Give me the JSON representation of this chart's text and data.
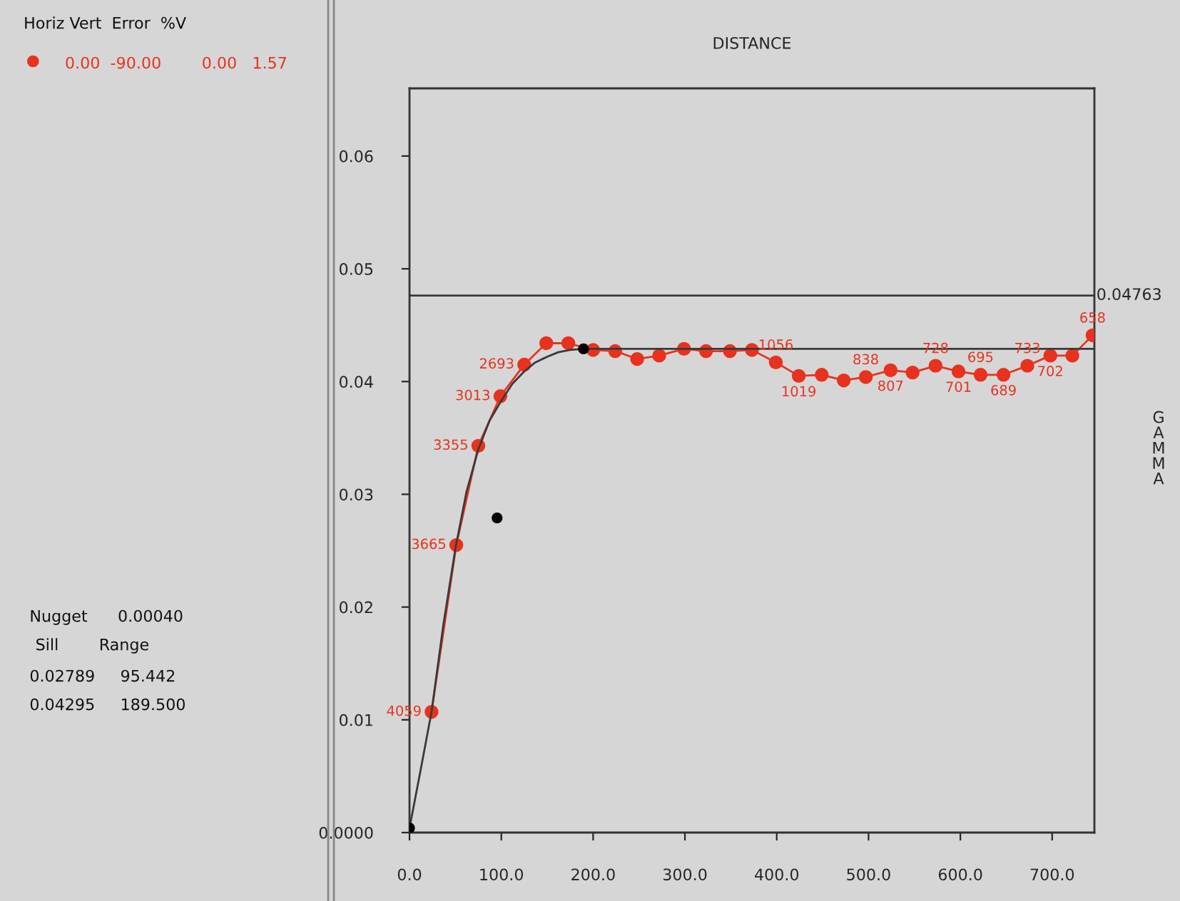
{
  "chart_data": {
    "type": "line",
    "xlabel": "DISTANCE",
    "ylabel": "GAMMA",
    "xlim": [
      0,
      746
    ],
    "ylim": [
      0,
      0.066
    ],
    "xticks": [
      {
        "value": 0,
        "label": "0.0"
      },
      {
        "value": 100,
        "label": "100.0"
      },
      {
        "value": 200,
        "label": "200.0"
      },
      {
        "value": 300,
        "label": "300.0"
      },
      {
        "value": 400,
        "label": "400.0"
      },
      {
        "value": 500,
        "label": "500.0"
      },
      {
        "value": 600,
        "label": "600.0"
      },
      {
        "value": 700,
        "label": "700.0"
      }
    ],
    "yticks": [
      {
        "value": 0,
        "label": "0.0000"
      },
      0.01,
      0.02,
      0.03,
      0.04,
      0.05,
      0.06
    ],
    "series": [
      {
        "color": "#e8321e",
        "marker": "circle",
        "x": [
          24,
          51,
          75,
          99,
          125,
          149,
          173,
          200,
          224,
          248,
          272,
          299,
          323,
          349,
          373,
          399,
          424,
          449,
          473,
          497,
          524,
          548,
          573,
          598,
          622,
          647,
          673,
          698,
          722,
          744
        ],
        "values": [
          0.0107,
          0.0255,
          0.0343,
          0.0387,
          0.0415,
          0.0434,
          0.0434,
          0.0428,
          0.0427,
          0.042,
          0.0423,
          0.0429,
          0.0427,
          0.0427,
          0.0428,
          0.0417,
          0.0405,
          0.0406,
          0.0401,
          0.0404,
          0.041,
          0.0408,
          0.0414,
          0.0409,
          0.0406,
          0.0406,
          0.0414,
          0.0423,
          0.0423,
          0.0441
        ]
      },
      {
        "type": "line",
        "color": "#3a3a3a",
        "marker": "none",
        "x": [
          0,
          12,
          24,
          37,
          50,
          62,
          75,
          87,
          100,
          112,
          125,
          137,
          150,
          162,
          175,
          189.5,
          745
        ],
        "values": [
          0.0004,
          0.0055,
          0.0107,
          0.0185,
          0.0252,
          0.0302,
          0.034,
          0.0365,
          0.0383,
          0.0398,
          0.0409,
          0.0417,
          0.0422,
          0.0426,
          0.0428,
          0.0429,
          0.0429
        ]
      },
      {
        "type": "scatter",
        "color": "#000000",
        "marker": "circle",
        "x": [
          0,
          95.4,
          189.5
        ],
        "values": [
          0.0004,
          0.0279,
          0.0429
        ]
      }
    ],
    "ref_lines": [
      {
        "axis": "y",
        "value": 0.04763,
        "label": "0.04763",
        "color": "#3a3a3a"
      }
    ],
    "annotations": [
      "Horiz Vert  Error  %V",
      "0.00  -90.00        0.00   1.57",
      "Nugget      0.00040",
      "Sill        Range",
      "0.02789     95.442",
      "0.04295     189.500",
      {
        "text": "4059",
        "x": 24,
        "y": 0.0107
      },
      {
        "text": "3665",
        "x": 51,
        "y": 0.0255
      },
      {
        "text": "3355",
        "x": 75,
        "y": 0.0343
      },
      {
        "text": "3013",
        "x": 99,
        "y": 0.0387
      },
      {
        "text": "2693",
        "x": 125,
        "y": 0.0415
      },
      {
        "text": "1056",
        "x": 399,
        "y": 0.0417
      },
      {
        "text": "1019",
        "x": 424,
        "y": 0.0405
      },
      {
        "text": "838",
        "x": 497,
        "y": 0.0404
      },
      {
        "text": "807",
        "x": 524,
        "y": 0.041
      },
      {
        "text": "728",
        "x": 573,
        "y": 0.0414
      },
      {
        "text": "701",
        "x": 598,
        "y": 0.0409
      },
      {
        "text": "695",
        "x": 622,
        "y": 0.0406
      },
      {
        "text": "689",
        "x": 647,
        "y": 0.0406
      },
      {
        "text": "733",
        "x": 673,
        "y": 0.0414
      },
      {
        "text": "702",
        "x": 698,
        "y": 0.0423
      },
      {
        "text": "658",
        "x": 744,
        "y": 0.0441
      }
    ],
    "grid": false,
    "legend": false
  }
}
